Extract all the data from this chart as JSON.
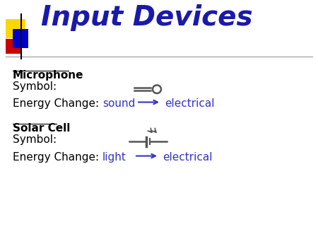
{
  "title": "Input Devices",
  "title_color": "#1a1aaa",
  "title_fontsize": 28,
  "bg_color": "#ffffff",
  "section1_label": "Microphone",
  "section1_symbol_label": "Symbol:",
  "section1_energy_label": "Energy Change:",
  "section1_from": "sound",
  "section1_to": "electrical",
  "section2_label": "Solar Cell",
  "section2_symbol_label": "Symbol:",
  "section2_energy_label": "Energy Change:",
  "section2_from": "light",
  "section2_to": "electrical",
  "label_color": "#000000",
  "energy_text_color": "#3333cc",
  "label_fontsize": 11,
  "energy_fontsize": 11,
  "arrow_color": "#3333cc",
  "symbol_color": "#555555",
  "header_line_color": "#999999",
  "decoration_yellow": "#FFD700",
  "decoration_red": "#CC0000",
  "decoration_blue": "#0000CC"
}
